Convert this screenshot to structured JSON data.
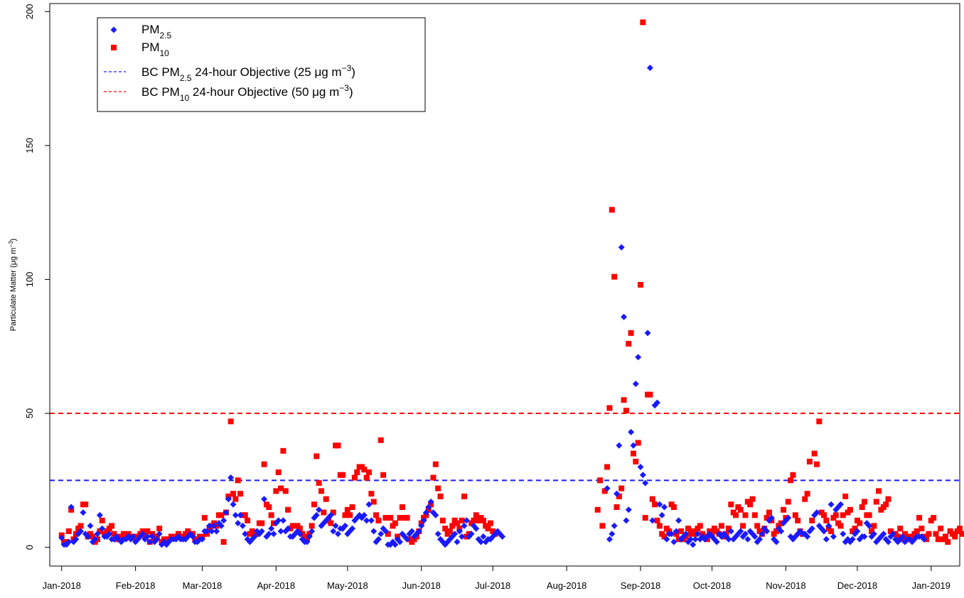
{
  "chart_data": {
    "type": "scatter",
    "title": "",
    "xlabel": "",
    "ylabel": "Particulate Matter (μg m",
    "ylabel_sup": "−3",
    "ylabel_close": ")",
    "xlim": [
      "2017-12-27",
      "2019-01-13"
    ],
    "ylim": [
      -7,
      203
    ],
    "y_ticks": [
      0,
      50,
      100,
      150,
      200
    ],
    "x_ticks": [
      {
        "date": "2018-01-01",
        "label": "Jan-2018"
      },
      {
        "date": "2018-02-01",
        "label": "Feb-2018"
      },
      {
        "date": "2018-03-01",
        "label": "Mar-2018"
      },
      {
        "date": "2018-04-01",
        "label": "Apr-2018"
      },
      {
        "date": "2018-05-01",
        "label": "May-2018"
      },
      {
        "date": "2018-06-01",
        "label": "Jun-2018"
      },
      {
        "date": "2018-07-01",
        "label": "Jul-2018"
      },
      {
        "date": "2018-08-01",
        "label": "Aug-2018"
      },
      {
        "date": "2018-09-01",
        "label": "Sep-2018"
      },
      {
        "date": "2018-10-01",
        "label": "Oct-2018"
      },
      {
        "date": "2018-11-01",
        "label": "Nov-2018"
      },
      {
        "date": "2018-12-01",
        "label": "Dec-2018"
      },
      {
        "date": "2019-01-01",
        "label": "Jan-2019"
      }
    ],
    "grid": false,
    "legend_position": "top-left",
    "legend": [
      {
        "label": "PM",
        "sub": "2.5",
        "after": "",
        "marker": "diamond",
        "color": "#1a1aff"
      },
      {
        "label": "PM",
        "sub": "10",
        "after": "",
        "marker": "square",
        "color": "#ff0000"
      },
      {
        "label": "BC PM",
        "sub": "2.5",
        "after": " 24-hour Objective (25 μg m",
        "sup": "−3",
        "close": ")",
        "marker": "dashed-line",
        "color": "#1a1aff"
      },
      {
        "label": "BC PM",
        "sub": "10",
        "after": " 24-hour Objective (50 μg m",
        "sup": "−3",
        "close": ")",
        "marker": "dashed-line",
        "color": "#ff0000"
      }
    ],
    "reference_lines": [
      {
        "name": "BC PM2.5 24-hour Objective",
        "y": 25,
        "color": "#1a1aff"
      },
      {
        "name": "BC PM10 24-hour Objective",
        "y": 50,
        "color": "#ff0000"
      }
    ],
    "series": [
      {
        "name": "PM2.5",
        "marker": "diamond",
        "color": "#1a1aff",
        "start_date": "2018-01-01",
        "values": [
          3.5,
          1,
          1,
          2,
          15,
          2,
          3,
          5,
          6,
          13,
          5,
          4,
          8,
          2,
          3,
          5,
          12,
          7,
          4,
          4,
          5,
          3,
          3,
          4,
          3,
          2,
          3,
          3,
          4,
          3,
          4,
          2,
          3,
          4,
          5,
          3,
          4,
          2,
          4,
          2,
          3,
          5,
          1,
          2,
          1,
          2,
          3,
          3,
          3,
          4,
          3,
          3,
          3,
          4,
          5,
          4,
          2,
          2,
          3,
          3,
          6,
          6,
          8,
          6,
          8,
          6,
          9,
          8,
          10,
          13,
          18,
          26,
          16,
          12,
          9,
          12,
          8,
          5,
          3,
          2,
          3,
          4,
          6,
          5,
          6,
          18,
          4,
          5,
          7,
          5,
          9,
          10,
          6,
          10,
          6,
          7,
          4,
          4,
          5,
          6,
          5,
          3,
          2,
          2,
          4,
          6,
          11,
          12,
          14,
          8,
          9,
          10,
          11,
          12,
          6,
          8,
          5,
          7,
          7,
          8,
          5,
          6,
          7,
          10,
          11,
          12,
          11,
          12,
          10,
          16,
          10,
          6,
          2,
          3,
          5,
          7,
          6,
          1,
          1,
          2,
          1,
          3,
          2,
          5,
          4,
          3,
          5,
          6,
          4,
          5,
          6,
          8,
          10,
          13,
          15,
          17,
          13,
          12,
          5,
          3,
          2,
          1,
          2,
          3,
          4,
          5,
          2,
          6,
          4,
          8,
          10,
          4,
          5,
          8,
          7,
          3,
          2,
          4,
          2,
          3,
          3,
          4,
          5,
          6,
          5,
          4,
          null,
          null,
          null,
          null,
          null,
          null,
          null,
          null,
          null,
          null,
          null,
          null,
          null,
          null,
          null,
          null,
          null,
          null,
          null,
          null,
          null,
          null,
          null,
          null,
          null,
          null,
          null,
          null,
          null,
          null,
          null,
          null,
          null,
          null,
          null,
          null,
          null,
          null,
          null,
          null,
          null,
          null,
          null,
          22,
          3,
          5,
          8,
          20,
          38,
          112,
          86,
          10,
          14,
          43,
          38,
          61,
          71,
          30,
          27,
          24,
          80,
          179,
          10,
          53,
          54,
          16,
          12,
          15,
          3,
          5,
          5,
          2,
          6,
          10,
          3,
          4,
          5,
          2,
          3,
          1,
          3,
          5,
          3,
          4,
          3,
          4,
          5,
          4,
          3,
          2,
          5,
          4,
          5,
          4,
          3,
          6,
          3,
          4,
          5,
          6,
          4,
          5,
          3,
          6,
          5,
          4,
          2,
          3,
          5,
          7,
          6,
          10,
          11,
          3,
          2,
          7,
          6,
          9,
          10,
          11,
          4,
          3,
          4,
          5,
          6,
          5,
          5,
          4,
          6,
          7,
          12,
          13,
          8,
          7,
          6,
          3,
          8,
          16,
          4,
          14,
          15,
          16,
          5,
          2,
          3,
          2,
          3,
          5,
          6,
          3,
          4,
          4,
          9,
          8,
          4,
          5,
          2,
          3,
          4,
          5,
          3,
          2,
          4,
          5,
          3,
          2,
          3,
          4,
          2,
          3,
          3,
          2,
          3,
          4,
          4,
          4,
          3
        ]
      },
      {
        "name": "PM10",
        "marker": "square",
        "color": "#ff0000",
        "start_date": "2018-01-01",
        "values": [
          4.5,
          2,
          2,
          6,
          14,
          3,
          5,
          7,
          8,
          16,
          16,
          4,
          5,
          4,
          2,
          3,
          6,
          10,
          5,
          6,
          7,
          8,
          5,
          3,
          4,
          3,
          5,
          4,
          5,
          4,
          4,
          3,
          4,
          5,
          6,
          4,
          6,
          2,
          5,
          3,
          4,
          7,
          2,
          3,
          2,
          3,
          4,
          4,
          4,
          5,
          4,
          4,
          5,
          6,
          5,
          5,
          3,
          3,
          4,
          4,
          11,
          5,
          7,
          8,
          9,
          8,
          12,
          12,
          2,
          13,
          19,
          47,
          20,
          18,
          25,
          20,
          12,
          12,
          10,
          5,
          6,
          5,
          5,
          9,
          9,
          31,
          16,
          15,
          12,
          9,
          21,
          28,
          22,
          36,
          21,
          14,
          7,
          8,
          8,
          8,
          7,
          5,
          4,
          3,
          5,
          8,
          16,
          34,
          24,
          21,
          13,
          18,
          10,
          9,
          13,
          38,
          38,
          27,
          27,
          12,
          14,
          12,
          15,
          26,
          28,
          30,
          30,
          29,
          26,
          28,
          20,
          17,
          12,
          10,
          40,
          27,
          11,
          5,
          11,
          8,
          9,
          4,
          11,
          15,
          11,
          11,
          3,
          2,
          3,
          4,
          6,
          9,
          11,
          12,
          14,
          16,
          26,
          31,
          22,
          19,
          10,
          7,
          5,
          6,
          8,
          10,
          9,
          7,
          10,
          19,
          4,
          5,
          9,
          10,
          12,
          10,
          11,
          10,
          8,
          7,
          9,
          6,
          5,
          null,
          null,
          null,
          null,
          null,
          null,
          null,
          null,
          null,
          null,
          null,
          null,
          null,
          null,
          null,
          null,
          null,
          null,
          null,
          null,
          null,
          null,
          null,
          null,
          null,
          null,
          null,
          null,
          null,
          null,
          null,
          null,
          null,
          null,
          null,
          null,
          null,
          null,
          null,
          null,
          null,
          null,
          14,
          25,
          8,
          21,
          30,
          52,
          126,
          101,
          15,
          19,
          22,
          55,
          51,
          76,
          80,
          35,
          32,
          39,
          98,
          196,
          11,
          57,
          57,
          18,
          16,
          10,
          8,
          5,
          4,
          7,
          6,
          16,
          15,
          5,
          3,
          6,
          3,
          4,
          7,
          5,
          6,
          5,
          7,
          8,
          5,
          4,
          3,
          6,
          5,
          7,
          6,
          5,
          8,
          4,
          5,
          7,
          16,
          13,
          12,
          15,
          14,
          8,
          12,
          17,
          16,
          18,
          12,
          8,
          6,
          5,
          7,
          11,
          13,
          10,
          5,
          6,
          8,
          9,
          14,
          11,
          17,
          25,
          27,
          12,
          10,
          6,
          5,
          18,
          20,
          32,
          10,
          35,
          31,
          47,
          13,
          12,
          10,
          7,
          6,
          11,
          12,
          9,
          8,
          12,
          19,
          13,
          14,
          6,
          7,
          10,
          9,
          15,
          17,
          12,
          12,
          6,
          8,
          17,
          21,
          14,
          15,
          16,
          18,
          6,
          5,
          5,
          4,
          7,
          3,
          5,
          4,
          3,
          4,
          5,
          6,
          11,
          7,
          4,
          3,
          5,
          10,
          11,
          5,
          3,
          7,
          3,
          4,
          2,
          6,
          5,
          4,
          6,
          7,
          5,
          5,
          6,
          7,
          5,
          4
        ]
      }
    ]
  }
}
